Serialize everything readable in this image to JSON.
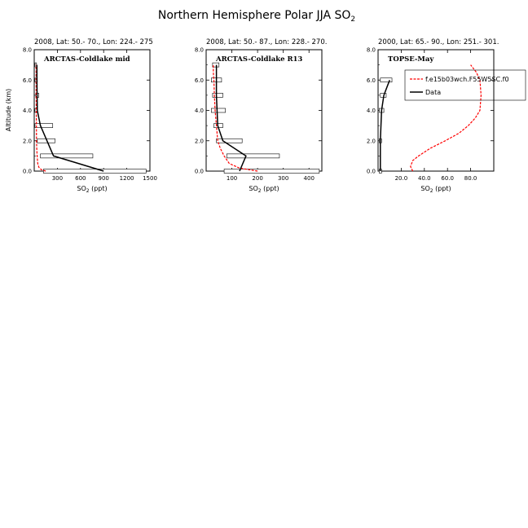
{
  "figure": {
    "title_main": "Northern Hemisphere Polar JJA SO",
    "title_sub": "2",
    "ylabel": "Altitude (km)",
    "legend": {
      "model_label": "f.e15b03wch.F55W5SC.f0",
      "data_label": "Data"
    }
  },
  "colors": {
    "model": "#ff0000",
    "data": "#000000",
    "box": "#000000"
  },
  "chart_data": [
    {
      "type": "line",
      "subtitle": "2008, Lat:  50.- 70., Lon: 224.- 275",
      "annotation": "ARCTAS-Coldlake mid",
      "xlabel": "SO2 (ppt)",
      "xlim": [
        0,
        1500
      ],
      "xticks": [
        300,
        600,
        900,
        1200,
        1500
      ],
      "xtick_labels": [
        "300",
        "600",
        "900",
        "1200",
        "1500"
      ],
      "ylim": [
        0,
        8
      ],
      "yticks": [
        0,
        2,
        4,
        6,
        8
      ],
      "ytick_labels": [
        "0.0",
        "2.0",
        "4.0",
        "6.0",
        "8.0"
      ],
      "y_axis_labels_visible": true,
      "legend": false,
      "series": [
        {
          "role": "model",
          "style": "dashed",
          "x": [
            150,
            90,
            60,
            45,
            38,
            33,
            30,
            28,
            26,
            25,
            24,
            24,
            24
          ],
          "y": [
            0.0,
            0.1,
            0.25,
            0.5,
            1.0,
            1.5,
            2.0,
            3.0,
            4.0,
            5.0,
            6.0,
            6.5,
            7.0
          ]
        },
        {
          "role": "data",
          "style": "solid",
          "x": [
            900,
            250,
            80,
            40,
            35,
            35
          ],
          "y": [
            0,
            1,
            3,
            4,
            6,
            7
          ]
        }
      ],
      "boxes": [
        {
          "y": 0,
          "x0": 120,
          "x1": 1450
        },
        {
          "y": 1,
          "x0": 80,
          "x1": 760
        },
        {
          "y": 2,
          "x0": 40,
          "x1": 270
        },
        {
          "y": 3,
          "x0": 10,
          "x1": 240
        },
        {
          "y": 4,
          "x0": 10,
          "x1": 40
        },
        {
          "y": 5,
          "x0": 20,
          "x1": 60
        },
        {
          "y": 6,
          "x0": 10,
          "x1": 40
        },
        {
          "y": 7,
          "x0": 10,
          "x1": 30
        }
      ]
    },
    {
      "type": "line",
      "subtitle": "2008, Lat:  50.- 87., Lon: 228.- 270.",
      "annotation": "ARCTAS-Coldlake R13",
      "xlabel": "SO2 (ppt)",
      "xlim": [
        0,
        450
      ],
      "xticks": [
        100,
        200,
        300,
        400
      ],
      "xtick_labels": [
        "100",
        "200",
        "300",
        "400"
      ],
      "ylim": [
        0,
        8
      ],
      "yticks": [
        0,
        2,
        4,
        6,
        8
      ],
      "ytick_labels": [
        "0.0",
        "2.0",
        "4.0",
        "6.0",
        "8.0"
      ],
      "y_axis_labels_visible": true,
      "legend": false,
      "series": [
        {
          "role": "model",
          "style": "dashed",
          "x": [
            200,
            130,
            90,
            70,
            55,
            45,
            40,
            35,
            32,
            30,
            28,
            28
          ],
          "y": [
            0.0,
            0.2,
            0.5,
            1.0,
            1.5,
            2.0,
            3.0,
            4.0,
            5.0,
            6.0,
            6.5,
            7.0
          ]
        },
        {
          "role": "data",
          "style": "solid",
          "x": [
            130,
            155,
            65,
            45,
            40,
            40,
            40
          ],
          "y": [
            0,
            1,
            2,
            3,
            5,
            6,
            7
          ]
        }
      ],
      "boxes": [
        {
          "y": 0,
          "x0": 70,
          "x1": 440
        },
        {
          "y": 1,
          "x0": 80,
          "x1": 285
        },
        {
          "y": 2,
          "x0": 40,
          "x1": 140
        },
        {
          "y": 3,
          "x0": 30,
          "x1": 65
        },
        {
          "y": 4,
          "x0": 20,
          "x1": 75
        },
        {
          "y": 5,
          "x0": 25,
          "x1": 65
        },
        {
          "y": 6,
          "x0": 20,
          "x1": 60
        },
        {
          "y": 7,
          "x0": 25,
          "x1": 50
        }
      ]
    },
    {
      "type": "line",
      "subtitle": "2000, Lat: 65.- 90., Lon: 251.- 301.",
      "annotation": "TOPSE-May",
      "xlabel": "SO2 (ppt)",
      "xlim": [
        0,
        100
      ],
      "xticks": [
        20,
        40,
        60,
        80
      ],
      "xtick_labels": [
        "20.0",
        "40.0",
        "60.0",
        "80.0"
      ],
      "ylim": [
        0,
        8
      ],
      "yticks": [
        0,
        2,
        4,
        6,
        8
      ],
      "ytick_labels": [
        "0.0",
        "2.0",
        "4.0",
        "6.0",
        "8.0"
      ],
      "y_axis_labels_visible": true,
      "legend": true,
      "series": [
        {
          "role": "model",
          "style": "dashed",
          "x": [
            30,
            28,
            30,
            35,
            45,
            58,
            70,
            78,
            84,
            88,
            89,
            88,
            85,
            80
          ],
          "y": [
            0.0,
            0.3,
            0.7,
            1.0,
            1.5,
            2.0,
            2.5,
            3.0,
            3.5,
            4.0,
            5.0,
            6.0,
            6.5,
            7.0
          ]
        },
        {
          "role": "data",
          "style": "solid",
          "x": [
            2,
            2,
            3,
            5,
            10
          ],
          "y": [
            0,
            2,
            4,
            5,
            6
          ]
        }
      ],
      "boxes": [
        {
          "y": 0,
          "x0": 1,
          "x1": 3
        },
        {
          "y": 2,
          "x0": 1,
          "x1": 3
        },
        {
          "y": 4,
          "x0": 1,
          "x1": 5
        },
        {
          "y": 5,
          "x0": 2,
          "x1": 7
        },
        {
          "y": 6,
          "x0": 2,
          "x1": 12
        }
      ]
    }
  ]
}
